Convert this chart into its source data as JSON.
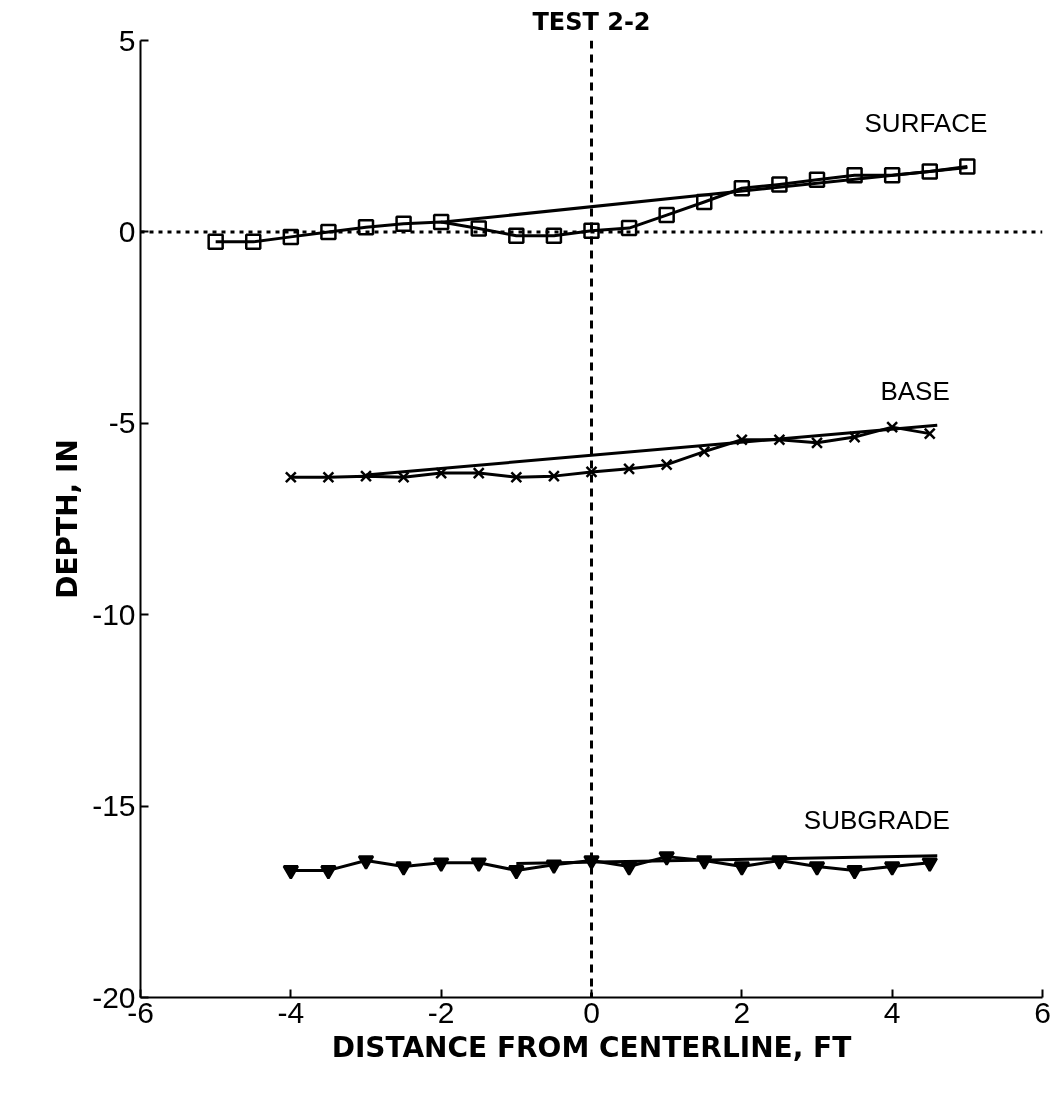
{
  "chart_data": {
    "type": "line",
    "title": "TEST 2-2",
    "xlabel": "DISTANCE FROM CENTERLINE, FT",
    "ylabel": "DEPTH, IN",
    "xlim": [
      -6,
      6
    ],
    "xticks": [
      -6,
      -4,
      -2,
      0,
      2,
      4,
      6
    ],
    "ylim": [
      -20,
      5
    ],
    "yticks": [
      -20,
      -15,
      -10,
      -5,
      0,
      5
    ],
    "grid": false,
    "line_style": "solid",
    "series": [
      {
        "name": "SURFACE",
        "color": "#000000",
        "marker": "square",
        "x": [
          -5,
          -4.5,
          -4,
          -3.5,
          -3,
          -2.5,
          -2,
          -1.5,
          -1,
          -0.5,
          0,
          0.5,
          1,
          1.5,
          2,
          2.5,
          3,
          3.5,
          4,
          4.5,
          5
        ],
        "values": [
          -0.26,
          -0.26,
          -0.13,
          0,
          0.12,
          0.21,
          0.26,
          0.09,
          -0.1,
          -0.1,
          0.03,
          0.1,
          0.44,
          0.78,
          1.14,
          1.24,
          1.36,
          1.48,
          1.48,
          1.58,
          1.71
        ]
      },
      {
        "color": "#000000",
        "marker": "none",
        "x": [
          -2,
          5
        ],
        "values": [
          0.25,
          1.68
        ]
      },
      {
        "name": "BASE",
        "color": "#000000",
        "marker": "cross",
        "x": [
          -4,
          -3.5,
          -3,
          -2.5,
          -2,
          -1.5,
          -1,
          -0.5,
          0,
          0.5,
          1,
          1.5,
          2,
          2.5,
          3,
          3.5,
          4,
          4.5
        ],
        "values": [
          -6.41,
          -6.41,
          -6.38,
          -6.41,
          -6.3,
          -6.3,
          -6.41,
          -6.38,
          -6.27,
          -6.19,
          -6.08,
          -5.74,
          -5.43,
          -5.43,
          -5.51,
          -5.36,
          -5.1,
          -5.27
        ]
      },
      {
        "color": "#000000",
        "marker": "none",
        "x": [
          -3,
          4.6
        ],
        "values": [
          -6.35,
          -5.05
        ]
      },
      {
        "name": "SUBGRADE",
        "color": "#000000",
        "marker": "triangle",
        "x": [
          -4,
          -3.5,
          -3,
          -2.5,
          -2,
          -1.5,
          -1,
          -0.5,
          0,
          0.5,
          1,
          1.5,
          2,
          2.5,
          3,
          3.5,
          4,
          4.5
        ],
        "values": [
          -16.68,
          -16.68,
          -16.42,
          -16.58,
          -16.48,
          -16.48,
          -16.68,
          -16.53,
          -16.42,
          -16.58,
          -16.32,
          -16.42,
          -16.58,
          -16.42,
          -16.58,
          -16.68,
          -16.58,
          -16.48
        ]
      },
      {
        "color": "#000000",
        "marker": "none",
        "x": [
          -1,
          4.6
        ],
        "values": [
          -16.5,
          -16.3
        ]
      }
    ],
    "ref_lines": [
      {
        "axis": "y",
        "value": 0,
        "line_style": "dotted"
      },
      {
        "axis": "x",
        "value": 0,
        "line_style": "dashed"
      }
    ]
  }
}
